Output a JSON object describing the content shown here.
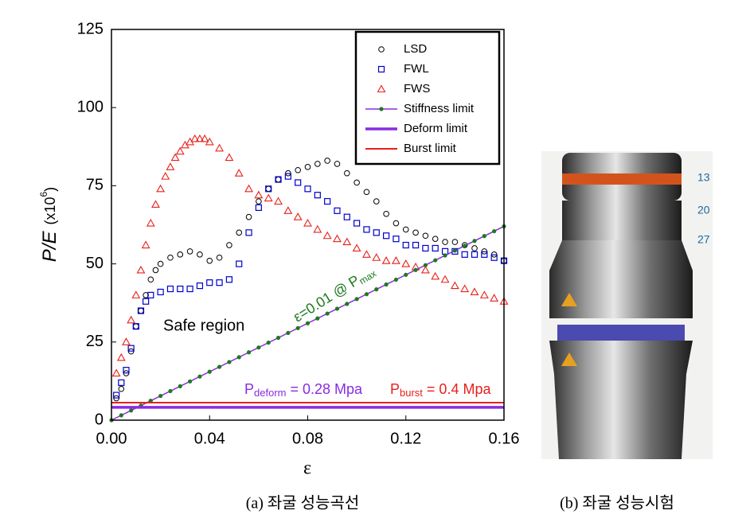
{
  "chart_data": {
    "type": "scatter",
    "y_label": {
      "main": "P/E",
      "unit": "(x10",
      "sup": "6",
      "close": ")"
    },
    "x_label": "ε",
    "xlim": [
      0,
      0.16
    ],
    "ylim": [
      0,
      125
    ],
    "xticks": [
      {
        "value": 0,
        "label": "0.00"
      },
      0.04,
      0.08,
      0.12,
      0.16
    ],
    "yticks": [
      0,
      25,
      50,
      75,
      100,
      125
    ],
    "legend": "top-right",
    "series": [
      {
        "name": "LSD",
        "color": "#000000",
        "marker": "circle",
        "x": [
          0.002,
          0.004,
          0.006,
          0.008,
          0.01,
          0.012,
          0.014,
          0.016,
          0.018,
          0.02,
          0.024,
          0.028,
          0.032,
          0.036,
          0.04,
          0.044,
          0.048,
          0.052,
          0.056,
          0.06,
          0.064,
          0.068,
          0.072,
          0.076,
          0.08,
          0.084,
          0.088,
          0.092,
          0.096,
          0.1,
          0.104,
          0.108,
          0.112,
          0.116,
          0.12,
          0.124,
          0.128,
          0.132,
          0.136,
          0.14,
          0.144,
          0.148,
          0.152,
          0.156,
          0.16
        ],
        "values": [
          7,
          10,
          15,
          22,
          30,
          35,
          40,
          45,
          48,
          50,
          52,
          53,
          54,
          53,
          51,
          52,
          56,
          60,
          65,
          70,
          74,
          77,
          79,
          80,
          81,
          82,
          83,
          82,
          79,
          76,
          73,
          70,
          66,
          63,
          61,
          60,
          59,
          58,
          57,
          57,
          56,
          55,
          54,
          53,
          51
        ]
      },
      {
        "name": "FWL",
        "color": "#0000cc",
        "marker": "square",
        "x": [
          0.002,
          0.004,
          0.006,
          0.008,
          0.01,
          0.012,
          0.014,
          0.016,
          0.02,
          0.024,
          0.028,
          0.032,
          0.036,
          0.04,
          0.044,
          0.048,
          0.052,
          0.056,
          0.06,
          0.064,
          0.068,
          0.072,
          0.076,
          0.08,
          0.084,
          0.088,
          0.092,
          0.096,
          0.1,
          0.104,
          0.108,
          0.112,
          0.116,
          0.12,
          0.124,
          0.128,
          0.132,
          0.136,
          0.14,
          0.144,
          0.148,
          0.152,
          0.156,
          0.16
        ],
        "values": [
          8,
          12,
          16,
          23,
          30,
          35,
          38,
          40,
          41,
          42,
          42,
          42,
          43,
          44,
          44,
          45,
          50,
          60,
          68,
          74,
          77,
          78,
          76,
          74,
          72,
          70,
          67,
          65,
          63,
          61,
          60,
          59,
          58,
          56,
          56,
          55,
          55,
          54,
          54,
          53,
          53,
          53,
          52,
          51
        ]
      },
      {
        "name": "FWS",
        "color": "#e8201a",
        "marker": "triangle",
        "x": [
          0.002,
          0.004,
          0.006,
          0.008,
          0.01,
          0.012,
          0.014,
          0.016,
          0.018,
          0.02,
          0.022,
          0.024,
          0.026,
          0.028,
          0.03,
          0.032,
          0.034,
          0.036,
          0.038,
          0.04,
          0.044,
          0.048,
          0.052,
          0.056,
          0.06,
          0.064,
          0.068,
          0.072,
          0.076,
          0.08,
          0.084,
          0.088,
          0.092,
          0.096,
          0.1,
          0.104,
          0.108,
          0.112,
          0.116,
          0.12,
          0.124,
          0.128,
          0.132,
          0.136,
          0.14,
          0.144,
          0.148,
          0.152,
          0.156,
          0.16
        ],
        "values": [
          15,
          20,
          25,
          32,
          40,
          48,
          56,
          63,
          69,
          74,
          78,
          81,
          84,
          86,
          88,
          89,
          90,
          90,
          90,
          89,
          87,
          84,
          79,
          74,
          72,
          71,
          70,
          67,
          65,
          63,
          61,
          59,
          58,
          57,
          55,
          53,
          52,
          51,
          51,
          50,
          49,
          48,
          46,
          45,
          43,
          42,
          41,
          40,
          39,
          38
        ]
      },
      {
        "name": "Stiffness limit",
        "color": "#8a2be2",
        "marker": "dot",
        "marker_color": "#1e7a1e",
        "line_width": 1.5,
        "x": [
          0,
          0.16
        ],
        "values": [
          0,
          62
        ]
      },
      {
        "name": "Deform limit",
        "color": "#8a2be2",
        "line_width": 3.5,
        "x": [
          0,
          0.16
        ],
        "values": [
          4.1,
          4.1
        ]
      },
      {
        "name": "Burst limit",
        "color": "#e8201a",
        "line_width": 2,
        "x": [
          0,
          0.16
        ],
        "values": [
          5.6,
          5.6
        ]
      }
    ],
    "annotations": {
      "safe": "Safe region",
      "strain": {
        "main": "ε=0.01 @ P",
        "sub": "max"
      },
      "deform": {
        "main": "P",
        "sub": "deform",
        "rest": " = 0.28 Mpa"
      },
      "burst": {
        "main": "P",
        "sub": "burst",
        "rest": " = 0.4 Mpa"
      }
    }
  },
  "captions": {
    "a": "(a)  좌굴  성능곡선",
    "b": "(b)  좌굴  성능시험"
  }
}
